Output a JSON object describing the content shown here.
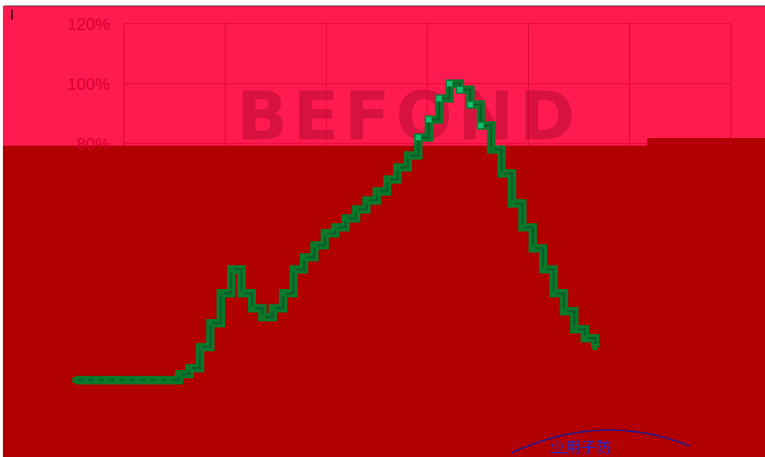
{
  "chart_data": {
    "type": "line",
    "title": "",
    "xlabel": "",
    "ylabel": "",
    "y_unit": "%",
    "ylim": [
      0,
      120
    ],
    "y_ticks": [
      {
        "value": 120,
        "label": "120%"
      },
      {
        "value": 100,
        "label": "100%"
      },
      {
        "value": 80,
        "label": "80%"
      }
    ],
    "x": [
      0,
      1,
      2,
      3,
      4,
      5,
      6,
      7,
      8,
      9,
      10,
      11,
      12,
      13,
      14,
      15,
      16,
      17,
      18,
      19,
      20,
      21,
      22,
      23,
      24,
      25,
      26,
      27,
      28,
      29,
      30,
      31,
      32,
      33,
      34,
      35,
      36,
      37,
      38,
      39,
      40,
      41,
      42,
      43,
      44,
      45,
      46,
      47,
      48,
      49,
      50
    ],
    "series": [
      {
        "values": [
          1,
          1,
          1,
          1,
          1,
          1,
          1,
          1,
          1,
          1,
          3,
          5,
          12,
          20,
          30,
          38,
          30,
          25,
          22,
          25,
          30,
          38,
          42,
          46,
          50,
          52,
          55,
          58,
          61,
          64,
          68,
          72,
          76,
          82,
          88,
          95,
          100,
          98,
          93,
          86,
          78,
          70,
          60,
          52,
          45,
          38,
          30,
          24,
          18,
          15,
          12
        ]
      }
    ],
    "grid": true,
    "colors": {
      "line": "#0b5c2c",
      "step_fill": "#0a7a2a",
      "highlight": "#10c070",
      "plot_border": "#d4002a"
    }
  },
  "watermark": {
    "text": "BEFOND"
  },
  "seal": {
    "text": "业用子防"
  }
}
